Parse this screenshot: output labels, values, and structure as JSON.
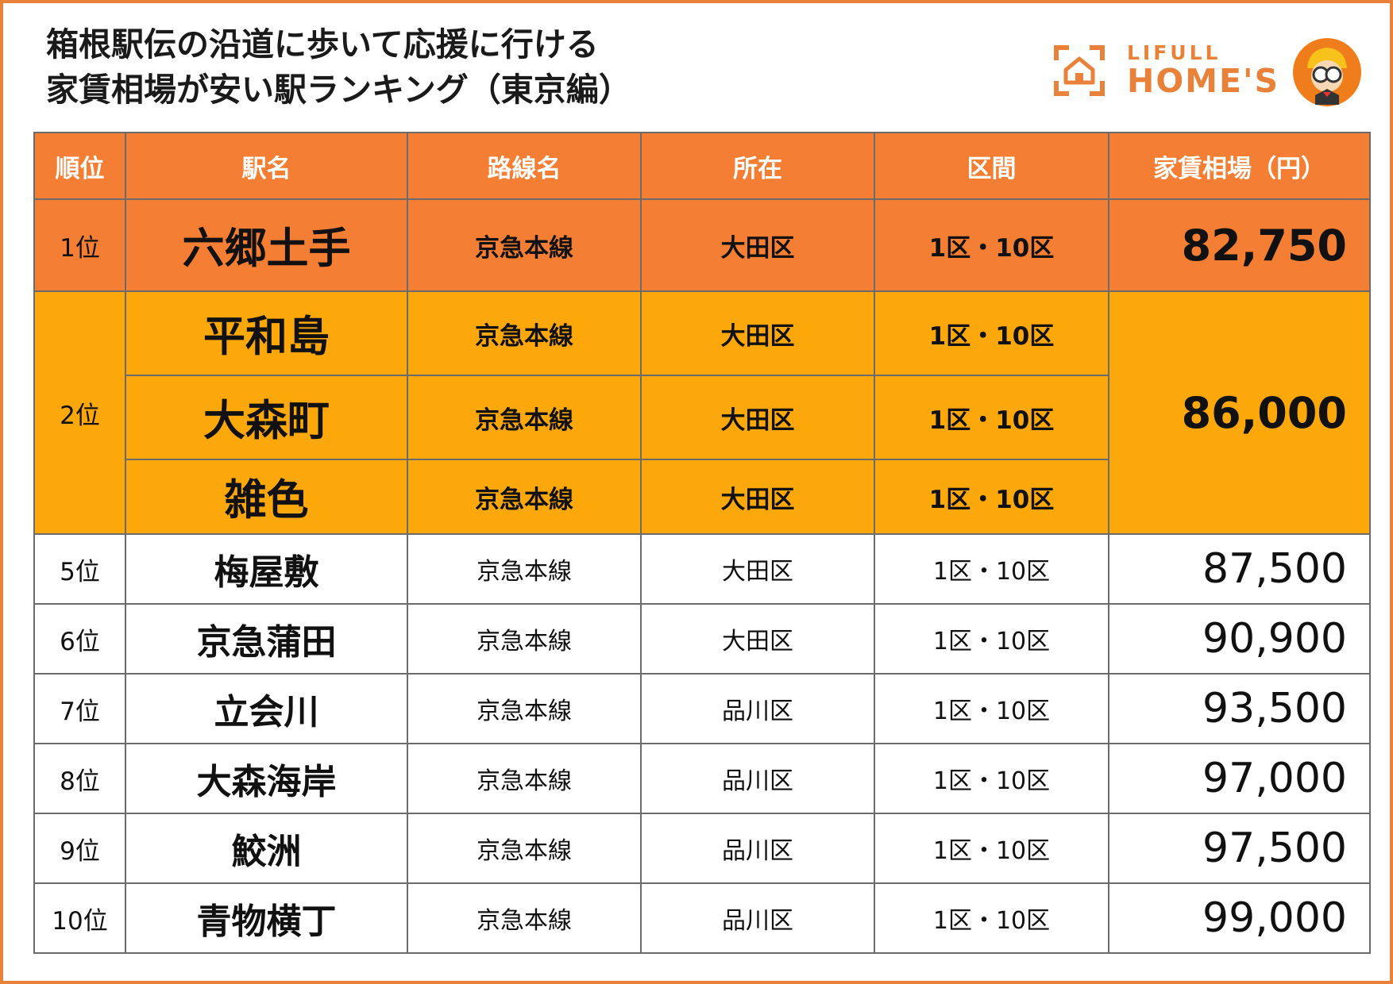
{
  "title": {
    "line1": "箱根駅伝の沿道に歩いて応援に行ける",
    "line2": "家賃相場が安い駅ランキング（東京編）"
  },
  "logo": {
    "line1": "LIFULL",
    "line2": "HOME'S",
    "brand_color": "#E8813A",
    "icons": [
      "house-icon",
      "mascot-icon"
    ]
  },
  "colors": {
    "header": "#F47F34",
    "rank1": "#F47F34",
    "rank2": "#FCA80A",
    "frame": "#E8813A"
  },
  "chart_data": {
    "type": "table",
    "columns": [
      "順位",
      "駅名",
      "路線名",
      "所在",
      "区間",
      "家賃相場（円）"
    ],
    "rows": [
      {
        "rank": "1位",
        "station": "六郷土手",
        "line": "京急本線",
        "ward": "大田区",
        "section": "1区・10区",
        "rent": "82,750"
      },
      {
        "rank": "2位",
        "station": "平和島",
        "line": "京急本線",
        "ward": "大田区",
        "section": "1区・10区",
        "rent": "86,000"
      },
      {
        "rank": "2位",
        "station": "大森町",
        "line": "京急本線",
        "ward": "大田区",
        "section": "1区・10区",
        "rent": "86,000"
      },
      {
        "rank": "2位",
        "station": "雑色",
        "line": "京急本線",
        "ward": "大田区",
        "section": "1区・10区",
        "rent": "86,000"
      },
      {
        "rank": "5位",
        "station": "梅屋敷",
        "line": "京急本線",
        "ward": "大田区",
        "section": "1区・10区",
        "rent": "87,500"
      },
      {
        "rank": "6位",
        "station": "京急蒲田",
        "line": "京急本線",
        "ward": "大田区",
        "section": "1区・10区",
        "rent": "90,900"
      },
      {
        "rank": "7位",
        "station": "立会川",
        "line": "京急本線",
        "ward": "品川区",
        "section": "1区・10区",
        "rent": "93,500"
      },
      {
        "rank": "8位",
        "station": "大森海岸",
        "line": "京急本線",
        "ward": "品川区",
        "section": "1区・10区",
        "rent": "97,000"
      },
      {
        "rank": "9位",
        "station": "鮫洲",
        "line": "京急本線",
        "ward": "品川区",
        "section": "1区・10区",
        "rent": "97,500"
      },
      {
        "rank": "10位",
        "station": "青物横丁",
        "line": "京急本線",
        "ward": "品川区",
        "section": "1区・10区",
        "rent": "99,000"
      }
    ]
  }
}
